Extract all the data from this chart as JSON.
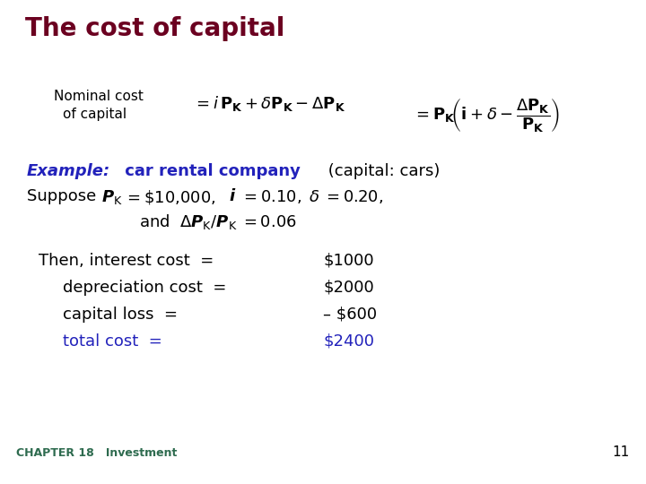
{
  "title": "The cost of capital",
  "title_color": "#6b0020",
  "title_fontsize": 20,
  "bg_color": "#ffffff",
  "text_color": "#000000",
  "blue_color": "#2222bb",
  "green_color": "#2e6b4f",
  "footer_chapter": "CHAPTER 18   Investment",
  "footer_page": "11"
}
